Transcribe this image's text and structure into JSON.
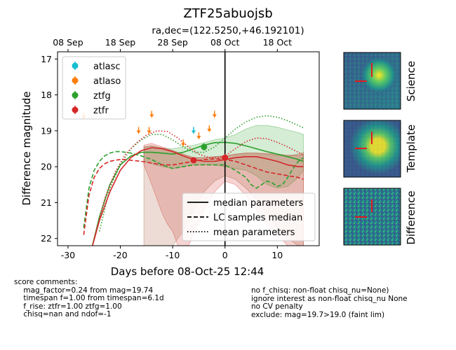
{
  "chart_data": {
    "type": "line",
    "title": "ZTF25abuojsb",
    "subtitle": "ra,dec=(122.5250,+46.192101)",
    "xlabel": "Days before 08-Oct-25 12:44",
    "ylabel": "Difference magnitude",
    "xlim": [
      -32,
      18
    ],
    "ylim": [
      22.2,
      16.8
    ],
    "y_inverted": true,
    "x_ticks": [
      -30,
      -20,
      -10,
      0,
      10
    ],
    "y_ticks": [
      17,
      18,
      19,
      20,
      21,
      22
    ],
    "top_axis_ticks": [
      {
        "x": -30,
        "label": "08 Sep"
      },
      {
        "x": -20,
        "label": "18 Sep"
      },
      {
        "x": -10,
        "label": "28 Sep"
      },
      {
        "x": 0,
        "label": "08 Oct"
      },
      {
        "x": 10,
        "label": "18 Oct"
      }
    ],
    "reference_line_x": 0,
    "legend_markers": {
      "position": "top-left",
      "entries": [
        {
          "name": "atlasc",
          "color": "#17becf"
        },
        {
          "name": "atlaso",
          "color": "#ff7f0e"
        },
        {
          "name": "ztfg",
          "color": "#2ca02c"
        },
        {
          "name": "ztfr",
          "color": "#d62728"
        }
      ]
    },
    "legend_lines": {
      "position": "bottom-right",
      "entries": [
        {
          "name": "median parameters",
          "style": "solid"
        },
        {
          "name": "LC samples median",
          "style": "dashed"
        },
        {
          "name": "mean parameters",
          "style": "dotted"
        }
      ]
    },
    "upper_limits": [
      {
        "band": "atlasc",
        "x": -6.0,
        "y": 19.05
      },
      {
        "band": "atlaso",
        "x": -27.0,
        "y": 18.65
      },
      {
        "band": "atlaso",
        "x": -16.5,
        "y": 19.05
      },
      {
        "band": "atlaso",
        "x": -14.5,
        "y": 19.05
      },
      {
        "band": "atlaso",
        "x": -14.0,
        "y": 18.6
      },
      {
        "band": "atlaso",
        "x": -8.0,
        "y": 19.4
      },
      {
        "band": "atlaso",
        "x": -5.0,
        "y": 19.2
      },
      {
        "band": "atlaso",
        "x": -3.0,
        "y": 19.0
      },
      {
        "band": "atlaso",
        "x": -2.0,
        "y": 18.6
      }
    ],
    "detections": [
      {
        "band": "ztfg",
        "x": -4.0,
        "y": 19.45,
        "err": 0.1
      },
      {
        "band": "ztfr",
        "x": -6.0,
        "y": 19.82,
        "err": 0.08
      },
      {
        "band": "ztfr",
        "x": 0.0,
        "y": 19.75,
        "err": 0.1
      }
    ],
    "series": [
      {
        "band": "ztfg",
        "style": "solid",
        "color": "#2ca02c",
        "x": [
          -25.5,
          -24,
          -22,
          -20,
          -18,
          -16,
          -14,
          -12,
          -10,
          -8,
          -6,
          -4,
          -2,
          0,
          2,
          4,
          6,
          8,
          10,
          12,
          14,
          15
        ],
        "y": [
          22.3,
          21.4,
          20.5,
          19.95,
          19.7,
          19.6,
          19.6,
          19.62,
          19.65,
          19.6,
          19.5,
          19.4,
          19.33,
          19.32,
          19.35,
          19.42,
          19.5,
          19.58,
          19.65,
          19.72,
          19.8,
          19.85
        ]
      },
      {
        "band": "ztfg",
        "style": "dashed",
        "color": "#2ca02c",
        "x": [
          -27,
          -26,
          -25,
          -24,
          -23,
          -22,
          -21,
          -20,
          -19,
          -18,
          -16,
          -14,
          -12,
          -10,
          -8,
          -6,
          -4,
          -2,
          0,
          2,
          4,
          5,
          6,
          7,
          8,
          9,
          10,
          11,
          12,
          13,
          14,
          15
        ],
        "y": [
          21.7,
          20.6,
          20.1,
          19.85,
          19.7,
          19.62,
          19.58,
          19.58,
          19.6,
          19.62,
          19.7,
          19.8,
          19.95,
          20.05,
          20.0,
          19.95,
          19.95,
          19.95,
          19.95,
          20.1,
          20.3,
          20.5,
          20.6,
          20.5,
          20.4,
          20.45,
          20.55,
          20.5,
          20.3,
          20.05,
          19.85,
          19.75
        ]
      },
      {
        "band": "ztfg",
        "style": "dotted",
        "color": "#2ca02c",
        "x": [
          -24,
          -22,
          -20,
          -18,
          -16,
          -14,
          -12,
          -10,
          -8,
          -6,
          -4,
          -2,
          0,
          2,
          4,
          6,
          8,
          10,
          12,
          14,
          15
        ],
        "y": [
          21.8,
          20.6,
          19.95,
          19.5,
          19.25,
          19.1,
          19.1,
          19.25,
          19.45,
          19.6,
          19.6,
          19.45,
          19.2,
          18.95,
          18.75,
          18.62,
          18.58,
          18.62,
          18.72,
          18.85,
          18.92
        ]
      },
      {
        "band": "ztfr",
        "style": "solid",
        "color": "#d62728",
        "x": [
          -25.5,
          -24,
          -22,
          -20,
          -18,
          -16,
          -14,
          -12,
          -10,
          -8,
          -6,
          -4,
          -2,
          0,
          2,
          4,
          6,
          8,
          10,
          12,
          14,
          15
        ],
        "y": [
          22.3,
          21.5,
          20.7,
          20.1,
          19.75,
          19.55,
          19.47,
          19.5,
          19.58,
          19.7,
          19.8,
          19.85,
          19.85,
          19.8,
          19.75,
          19.72,
          19.72,
          19.78,
          19.85,
          19.95,
          20.0,
          20.0
        ]
      },
      {
        "band": "ztfr",
        "style": "dashed",
        "color": "#d62728",
        "x": [
          -27,
          -26,
          -25,
          -24,
          -23,
          -22,
          -21,
          -20,
          -19,
          -18,
          -16,
          -14,
          -12,
          -10,
          -8,
          -6,
          -4,
          -2,
          0,
          2,
          4,
          6,
          8,
          10,
          12,
          14,
          15
        ],
        "y": [
          21.9,
          20.8,
          20.3,
          20.05,
          19.92,
          19.85,
          19.82,
          19.8,
          19.8,
          19.82,
          19.85,
          19.9,
          19.95,
          19.95,
          19.9,
          19.85,
          19.8,
          19.78,
          19.8,
          19.85,
          19.95,
          20.05,
          20.15,
          20.2,
          20.25,
          20.3,
          20.35
        ]
      },
      {
        "band": "ztfr",
        "style": "dotted",
        "color": "#d62728",
        "x": [
          -25,
          -23,
          -21,
          -19,
          -17,
          -15,
          -13,
          -11,
          -9,
          -7,
          -5,
          -3,
          -1,
          0,
          2,
          4,
          6,
          8,
          10,
          12,
          14,
          15
        ],
        "y": [
          22.0,
          20.9,
          20.15,
          19.65,
          19.35,
          19.12,
          19.0,
          19.02,
          19.2,
          19.45,
          19.65,
          19.75,
          19.75,
          19.7,
          19.5,
          19.3,
          19.2,
          19.22,
          19.32,
          19.45,
          19.6,
          19.68
        ]
      }
    ],
    "bands": [
      {
        "band": "ztfg",
        "color": "#2ca02c",
        "x": [
          -15.5,
          -14,
          -12,
          -10,
          -8,
          -6,
          -4,
          -2,
          0,
          2,
          4,
          6,
          8,
          10,
          12,
          14,
          15
        ],
        "lower": [
          19.45,
          19.42,
          19.48,
          19.5,
          19.45,
          19.4,
          19.33,
          19.25,
          19.2,
          19.1,
          18.95,
          18.85,
          18.85,
          18.9,
          18.98,
          19.05,
          19.1
        ],
        "upper": [
          19.85,
          19.92,
          20.0,
          20.05,
          20.0,
          19.95,
          19.95,
          19.95,
          20.0,
          20.05,
          20.1,
          20.25,
          20.5,
          20.6,
          20.55,
          20.3,
          20.1
        ]
      },
      {
        "band": "ztfr",
        "color": "#d62728",
        "x": [
          -15.5,
          -14,
          -12,
          -11,
          -10,
          -9,
          -8,
          -7,
          -6,
          -4,
          -2,
          0,
          2,
          4,
          6,
          8,
          10,
          12,
          14,
          15
        ],
        "lower": [
          19.4,
          19.35,
          19.45,
          19.5,
          19.55,
          19.6,
          19.65,
          19.7,
          19.75,
          19.75,
          19.72,
          19.7,
          19.65,
          19.62,
          19.62,
          19.63,
          19.65,
          19.68,
          19.68,
          19.65
        ],
        "upper": [
          19.95,
          20.5,
          21.3,
          21.6,
          21.8,
          22.2,
          22.2,
          22.2,
          21.9,
          21.2,
          20.7,
          20.4,
          20.5,
          20.8,
          21.2,
          21.6,
          21.9,
          22.2,
          22.2,
          22.2
        ]
      },
      {
        "band": "fill-brown",
        "color": "#a0522d",
        "x": [
          -15.5,
          -14,
          -12,
          -10,
          -8,
          -6,
          -4,
          -2,
          0,
          2,
          4,
          6,
          8,
          10,
          12,
          14,
          15
        ],
        "lower": [
          19.45,
          19.42,
          19.48,
          19.55,
          19.65,
          19.75,
          19.75,
          19.72,
          19.7,
          19.65,
          19.62,
          19.62,
          19.65,
          19.68,
          19.7,
          19.65,
          19.6
        ],
        "upper": [
          22.2,
          22.2,
          22.2,
          22.2,
          21.8,
          21.2,
          20.7,
          20.4,
          20.25,
          20.35,
          20.6,
          20.9,
          21.3,
          21.7,
          22.0,
          22.2,
          22.2
        ]
      }
    ]
  },
  "panels": {
    "science_label": "Science",
    "template_label": "Template",
    "difference_label": "Difference"
  },
  "comments": {
    "left": "score comments:\n    mag_factor=0.24 from mag=19.74\n    timespan f=1.00 from timespan=6.1d\n    f_rise: ztfr=1.00 ztfg=1.00\n    chisq=nan and ndof=-1",
    "right": "no f_chisq: non-float chisq_nu=None)\nignore interest as non-float chisq_nu None\nno CV penalty\nexclude: mag=19.7>19.0 (faint lim)"
  }
}
